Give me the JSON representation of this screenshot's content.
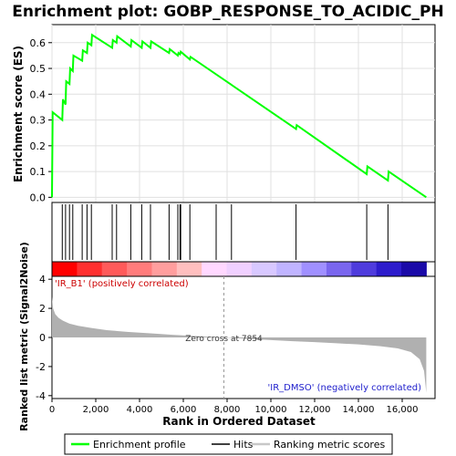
{
  "chart_data": {
    "type": "line",
    "title": "Enrichment plot: GOBP_RESPONSE_TO_ACIDIC_PH",
    "top_panel": {
      "ylabel": "Enrichment score (ES)",
      "ylim": [
        -0.02,
        0.67
      ],
      "yticks": [
        "0.0",
        "0.1",
        "0.2",
        "0.3",
        "0.4",
        "0.5",
        "0.6"
      ],
      "grid": true,
      "series": [
        {
          "name": "Enrichment profile",
          "color": "#00ff00",
          "x": [
            0,
            30,
            470,
            500,
            620,
            650,
            800,
            830,
            950,
            980,
            1380,
            1410,
            1600,
            1630,
            1800,
            1830,
            2750,
            2780,
            2950,
            2980,
            3600,
            3630,
            4100,
            4130,
            4500,
            4530,
            5350,
            5380,
            5750,
            5780,
            5850,
            5880,
            6300,
            6330,
            11150,
            11180,
            14380,
            14410,
            15350,
            15380,
            17100
          ],
          "y": [
            0.0,
            0.33,
            0.3,
            0.38,
            0.36,
            0.45,
            0.44,
            0.5,
            0.49,
            0.55,
            0.53,
            0.57,
            0.56,
            0.6,
            0.59,
            0.63,
            0.58,
            0.61,
            0.6,
            0.625,
            0.585,
            0.61,
            0.58,
            0.605,
            0.58,
            0.605,
            0.56,
            0.575,
            0.55,
            0.56,
            0.555,
            0.565,
            0.535,
            0.545,
            0.265,
            0.28,
            0.09,
            0.12,
            0.065,
            0.1,
            0.0
          ]
        }
      ]
    },
    "hits_panel": {
      "name": "Hits",
      "positions": [
        470,
        620,
        800,
        950,
        1380,
        1600,
        1800,
        2750,
        2950,
        3600,
        4100,
        4500,
        5350,
        5750,
        5850,
        5880,
        6300,
        7500,
        8200,
        11150,
        14380,
        15350
      ]
    },
    "heatbar": {
      "colors": [
        "#ff0000",
        "#ff3030",
        "#ff5a5a",
        "#ff7c7c",
        "#ff9e9e",
        "#ffbfbf",
        "#ffd8ff",
        "#f0d0ff",
        "#d8c8ff",
        "#c0b4ff",
        "#a090ff",
        "#7a66ee",
        "#4f3cdd",
        "#2d1ccc",
        "#1a0aa8"
      ]
    },
    "bottom_panel": {
      "name": "Ranking metric scores",
      "ylabel": "Ranked list metric (Signal2Noise)",
      "ylim": [
        -4.2,
        4.2
      ],
      "yticks": [
        "-4",
        "-2",
        "0",
        "2",
        "4"
      ],
      "zero_cross_label": "Zero cross at 7854",
      "zero_cross_x": 7854,
      "pos_label": "'IR_B1' (positively correlated)",
      "neg_label": "'IR_DMSO' (negatively correlated)",
      "color": "#b0b0b0",
      "x": [
        0,
        50,
        150,
        300,
        500,
        800,
        1200,
        1800,
        2500,
        3500,
        4500,
        5500,
        6500,
        7854,
        9000,
        10000,
        11000,
        12000,
        13000,
        14000,
        15000,
        15800,
        16400,
        16800,
        17000,
        17100
      ],
      "y": [
        2.8,
        2.0,
        1.6,
        1.35,
        1.15,
        0.95,
        0.8,
        0.65,
        0.5,
        0.38,
        0.28,
        0.18,
        0.1,
        0.0,
        -0.1,
        -0.18,
        -0.26,
        -0.32,
        -0.4,
        -0.48,
        -0.6,
        -0.75,
        -1.0,
        -1.5,
        -2.3,
        -3.8
      ]
    },
    "xaxis": {
      "xlabel": "Rank in Ordered Dataset",
      "xlim": [
        0,
        17500
      ],
      "xticks": [
        "0",
        "2,000",
        "4,000",
        "6,000",
        "8,000",
        "10,000",
        "12,000",
        "14,000",
        "16,000"
      ]
    },
    "legend": {
      "placement": "bottom",
      "entries": [
        "Enrichment profile",
        "Hits",
        "Ranking metric scores"
      ]
    }
  }
}
